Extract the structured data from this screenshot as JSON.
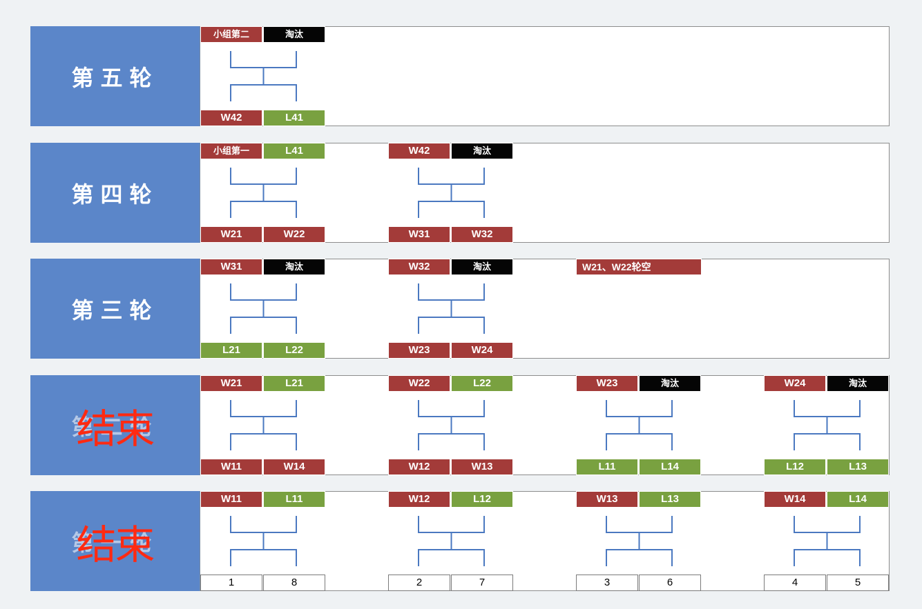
{
  "colors": {
    "winner": "#a33b39",
    "loser": "#79a140",
    "eliminated": "#050505",
    "round_label_bg": "#5b86c9",
    "bracket_line": "#4a78c0",
    "finished_stamp": "#ff2a12"
  },
  "rounds": [
    {
      "label": "第五轮",
      "finished_stamp": "",
      "matches": [
        {
          "top": [
            {
              "text": "小组第二",
              "kind": "G"
            },
            {
              "text": "淘汰",
              "kind": "X"
            }
          ],
          "bottom": [
            {
              "text": "W42",
              "kind": "W"
            },
            {
              "text": "L41",
              "kind": "L"
            }
          ]
        }
      ]
    },
    {
      "label": "第四轮",
      "finished_stamp": "",
      "matches": [
        {
          "top": [
            {
              "text": "小组第一",
              "kind": "G"
            },
            {
              "text": "L41",
              "kind": "L"
            }
          ],
          "bottom": [
            {
              "text": "W21",
              "kind": "W"
            },
            {
              "text": "W22",
              "kind": "W"
            }
          ]
        },
        {
          "top": [
            {
              "text": "W42",
              "kind": "W"
            },
            {
              "text": "淘汰",
              "kind": "X"
            }
          ],
          "bottom": [
            {
              "text": "W31",
              "kind": "W"
            },
            {
              "text": "W32",
              "kind": "W"
            }
          ]
        }
      ]
    },
    {
      "label": "第三轮",
      "finished_stamp": "",
      "note": "W21、W22轮空",
      "matches": [
        {
          "top": [
            {
              "text": "W31",
              "kind": "W"
            },
            {
              "text": "淘汰",
              "kind": "X"
            }
          ],
          "bottom": [
            {
              "text": "L21",
              "kind": "L"
            },
            {
              "text": "L22",
              "kind": "L"
            }
          ]
        },
        {
          "top": [
            {
              "text": "W32",
              "kind": "W"
            },
            {
              "text": "淘汰",
              "kind": "X"
            }
          ],
          "bottom": [
            {
              "text": "W23",
              "kind": "W"
            },
            {
              "text": "W24",
              "kind": "W"
            }
          ]
        }
      ]
    },
    {
      "label": "第二轮",
      "finished_stamp": "结束",
      "matches": [
        {
          "top": [
            {
              "text": "W21",
              "kind": "W"
            },
            {
              "text": "L21",
              "kind": "L"
            }
          ],
          "bottom": [
            {
              "text": "W11",
              "kind": "W"
            },
            {
              "text": "W14",
              "kind": "W"
            }
          ]
        },
        {
          "top": [
            {
              "text": "W22",
              "kind": "W"
            },
            {
              "text": "L22",
              "kind": "L"
            }
          ],
          "bottom": [
            {
              "text": "W12",
              "kind": "W"
            },
            {
              "text": "W13",
              "kind": "W"
            }
          ]
        },
        {
          "top": [
            {
              "text": "W23",
              "kind": "W"
            },
            {
              "text": "淘汰",
              "kind": "X"
            }
          ],
          "bottom": [
            {
              "text": "L11",
              "kind": "L"
            },
            {
              "text": "L14",
              "kind": "L"
            }
          ]
        },
        {
          "top": [
            {
              "text": "W24",
              "kind": "W"
            },
            {
              "text": "淘汰",
              "kind": "X"
            }
          ],
          "bottom": [
            {
              "text": "L12",
              "kind": "L"
            },
            {
              "text": "L13",
              "kind": "L"
            }
          ]
        }
      ]
    },
    {
      "label": "第一轮",
      "finished_stamp": "结束",
      "matches": [
        {
          "top": [
            {
              "text": "W11",
              "kind": "W"
            },
            {
              "text": "L11",
              "kind": "L"
            }
          ],
          "bottom": [
            {
              "text": "1",
              "kind": "N"
            },
            {
              "text": "8",
              "kind": "N"
            }
          ]
        },
        {
          "top": [
            {
              "text": "W12",
              "kind": "W"
            },
            {
              "text": "L12",
              "kind": "L"
            }
          ],
          "bottom": [
            {
              "text": "2",
              "kind": "N"
            },
            {
              "text": "7",
              "kind": "N"
            }
          ]
        },
        {
          "top": [
            {
              "text": "W13",
              "kind": "W"
            },
            {
              "text": "L13",
              "kind": "L"
            }
          ],
          "bottom": [
            {
              "text": "3",
              "kind": "N"
            },
            {
              "text": "6",
              "kind": "N"
            }
          ]
        },
        {
          "top": [
            {
              "text": "W14",
              "kind": "W"
            },
            {
              "text": "L14",
              "kind": "L"
            }
          ],
          "bottom": [
            {
              "text": "4",
              "kind": "N"
            },
            {
              "text": "5",
              "kind": "N"
            }
          ]
        }
      ]
    }
  ]
}
